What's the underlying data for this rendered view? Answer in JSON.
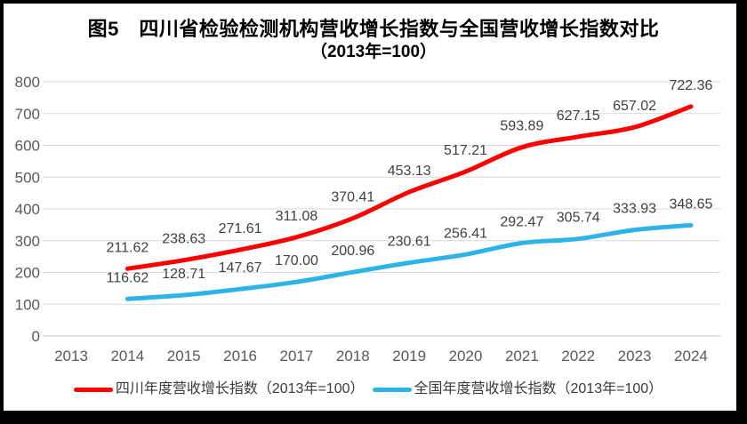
{
  "figure": {
    "frame_color": "#000000",
    "background_color": "#ffffff"
  },
  "chart_data": {
    "type": "line",
    "title": "图5　四川省检验检测机构营收增长指数与全国营收增长指数对比",
    "subtitle": "（2013年=100）",
    "categories": [
      "2013",
      "2014",
      "2015",
      "2016",
      "2017",
      "2018",
      "2019",
      "2020",
      "2021",
      "2022",
      "2023",
      "2024"
    ],
    "y_ticks": [
      0,
      100,
      200,
      300,
      400,
      500,
      600,
      700,
      800
    ],
    "ylim": [
      0,
      800
    ],
    "grid": true,
    "legend_position": "bottom",
    "gridline_color": "#d9d9d9",
    "axis_text_color": "#595959",
    "label_text_color": "#404040",
    "series": [
      {
        "name": "四川年度营收增长指数（2013年=100）",
        "color": "#ff0000",
        "values": [
          null,
          211.62,
          238.63,
          271.61,
          311.08,
          370.41,
          453.13,
          517.21,
          593.89,
          627.15,
          657.02,
          722.36
        ],
        "labels": [
          null,
          "211.62",
          "238.63",
          "271.61",
          "311.08",
          "370.41",
          "453.13",
          "517.21",
          "593.89",
          "627.15",
          "657.02",
          "722.36"
        ]
      },
      {
        "name": "全国年度营收增长指数（2013年=100）",
        "color": "#2eb3e6",
        "values": [
          null,
          116.62,
          128.71,
          147.67,
          170.0,
          200.96,
          230.61,
          256.41,
          292.47,
          305.74,
          333.93,
          348.65
        ],
        "labels": [
          null,
          "116.62",
          "128.71",
          "147.67",
          "170.00",
          "200.96",
          "230.61",
          "256.41",
          "292.47",
          "305.74",
          "333.93",
          "348.65"
        ]
      }
    ]
  }
}
